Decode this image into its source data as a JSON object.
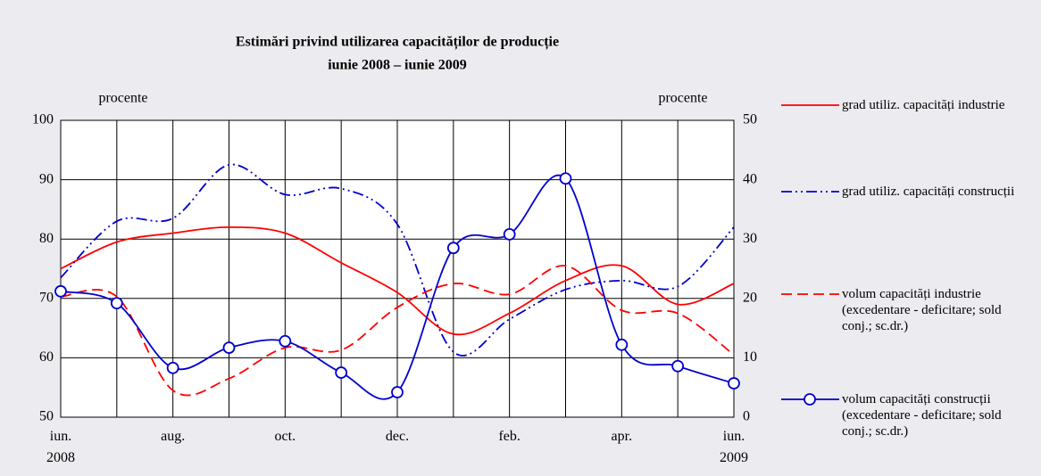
{
  "chart_data": {
    "type": "line",
    "title": "Estimări privind utilizarea capacităților de producție",
    "subtitle": "iunie 2008 – iunie 2009",
    "y_label": "procente",
    "y2_label": "procente",
    "categories": [
      "iun. 2008",
      null,
      "aug.",
      null,
      "oct.",
      null,
      "dec.",
      null,
      "feb.",
      null,
      "apr.",
      null,
      "iun. 2009"
    ],
    "ylim": [
      50,
      100
    ],
    "yticks": [
      50,
      60,
      70,
      80,
      90,
      100
    ],
    "y2lim": [
      0,
      50
    ],
    "y2ticks": [
      0,
      10,
      20,
      30,
      40,
      50
    ],
    "grid": true,
    "legend": "right",
    "series": [
      {
        "name": "grad utiliz. capacități industrie",
        "color": "#ff0000",
        "style": "solid",
        "values": [
          75,
          79.5,
          81,
          82,
          81,
          76,
          71,
          64,
          67.5,
          73,
          75.5,
          69,
          72.5
        ]
      },
      {
        "name": "grad utiliz. capacități construcții",
        "color": "#0000cc",
        "style": "dashdot",
        "values": [
          73.5,
          83,
          83.5,
          92.5,
          87.5,
          88.5,
          82.5,
          61,
          66.5,
          71.5,
          73,
          72,
          82
        ]
      },
      {
        "name": "volum capacități industrie (excedentare - deficitare; sold conj.; sc.dr.)",
        "color": "#ff0000",
        "style": "dashed",
        "axis": "y2",
        "values": [
          20.3,
          20.3,
          4.5,
          6.5,
          11.7,
          11.3,
          18.5,
          22.5,
          20.7,
          25.5,
          18,
          17.5,
          10.5
        ]
      },
      {
        "name": "volum capacități construcții (excedentare - deficitare; sold conj.; sc.dr.)",
        "color": "#0000cc",
        "style": "marker",
        "axis": "y2",
        "values": [
          21.2,
          19.2,
          8.3,
          11.7,
          12.8,
          7.5,
          4.2,
          28.5,
          30.8,
          40.2,
          12.2,
          8.6,
          5.7
        ]
      }
    ]
  }
}
